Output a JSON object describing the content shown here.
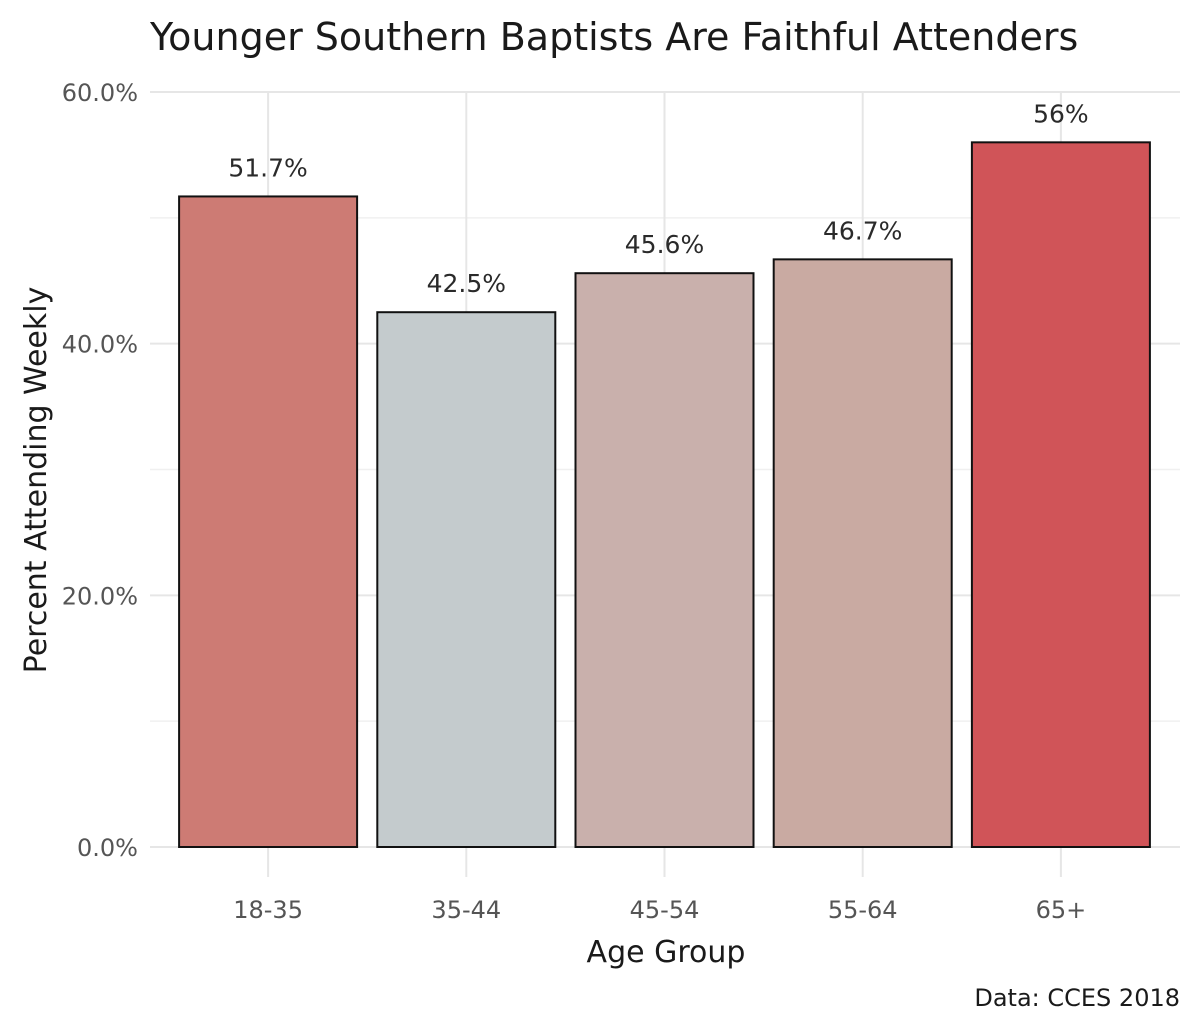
{
  "chart_data": {
    "type": "bar",
    "title": "Younger Southern Baptists Are Faithful Attenders",
    "xlabel": "Age Group",
    "ylabel": "Percent Attending Weekly",
    "caption": "Data: CCES 2018",
    "categories": [
      "18-35",
      "35-44",
      "45-54",
      "55-64",
      "65+"
    ],
    "values": [
      51.7,
      42.5,
      45.6,
      46.7,
      56.0
    ],
    "value_labels": [
      "51.7%",
      "42.5%",
      "45.6%",
      "46.7%",
      "56%"
    ],
    "bar_colors": [
      "#cd7b74",
      "#c4cbcd",
      "#c9b0ac",
      "#c9aaa2",
      "#d05458"
    ],
    "ylim": [
      0,
      60
    ],
    "yticks": [
      0,
      20,
      40,
      60
    ],
    "ytick_labels": [
      "0.0%",
      "20.0%",
      "40.0%",
      "60.0%"
    ],
    "grid": true,
    "legend": "none"
  }
}
